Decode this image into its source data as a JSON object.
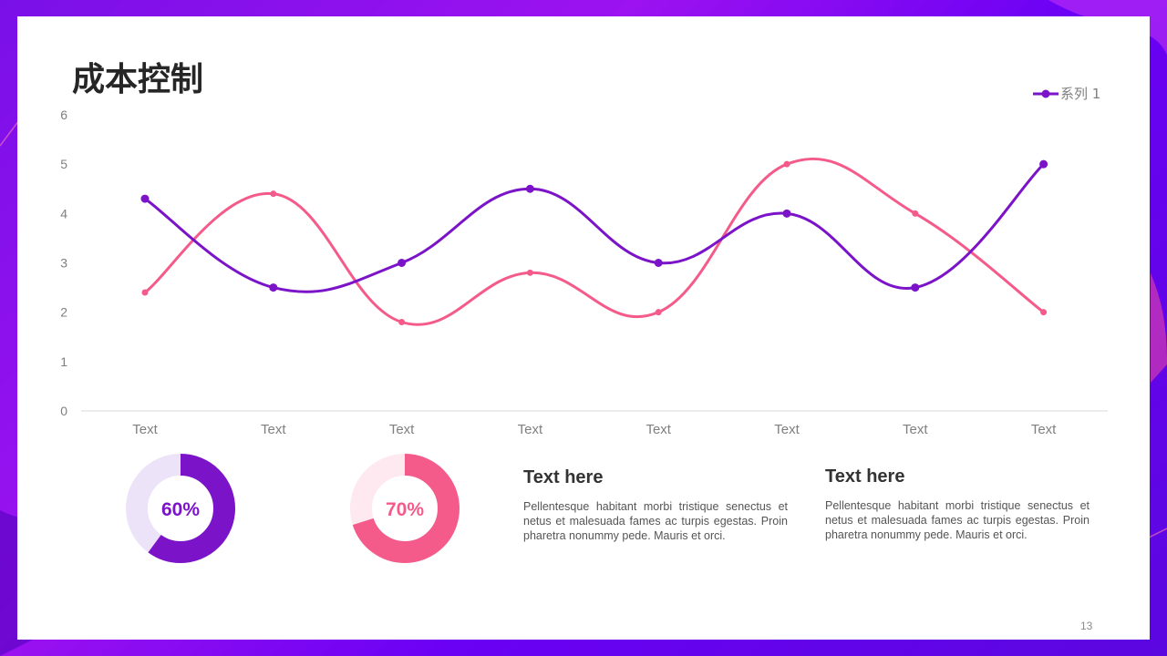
{
  "slide": {
    "title": "成本控制",
    "page_number": "13"
  },
  "chart_data": {
    "type": "line",
    "title": "",
    "xlabel": "",
    "ylabel": "",
    "categories": [
      "Text",
      "Text",
      "Text",
      "Text",
      "Text",
      "Text",
      "Text",
      "Text"
    ],
    "ylim": [
      0,
      6
    ],
    "yticks": [
      "0",
      "1",
      "2",
      "3",
      "4",
      "5",
      "6"
    ],
    "grid": false,
    "legend_position": "top-right",
    "smooth": true,
    "series": [
      {
        "name": "系列 1",
        "color": "#7b13c9",
        "values": [
          4.3,
          2.5,
          3.0,
          4.5,
          3.0,
          4.0,
          2.5,
          5.0
        ],
        "in_legend": true
      },
      {
        "color": "#f45b8a",
        "values": [
          2.4,
          4.4,
          1.8,
          2.8,
          2.0,
          5.0,
          4.0,
          2.0
        ],
        "in_legend": false
      }
    ]
  },
  "donuts": [
    {
      "value": 0.6,
      "label": "60%",
      "color": "#7b13c9",
      "track_color": "#ede3f8"
    },
    {
      "value": 0.7,
      "label": "70%",
      "color": "#f45b8a",
      "track_color": "#fde9ef"
    }
  ],
  "cards": [
    {
      "title": "Text here",
      "body": "Pellentesque habitant morbi tristique senectus et netus et malesuada fames ac turpis egestas. Proin pharetra nonummy pede. Mauris et orci."
    },
    {
      "title": "Text here",
      "body": "Pellentesque habitant morbi tristique senectus et netus et malesuada fames ac turpis egestas. Proin pharetra nonummy pede. Mauris et orci."
    }
  ]
}
